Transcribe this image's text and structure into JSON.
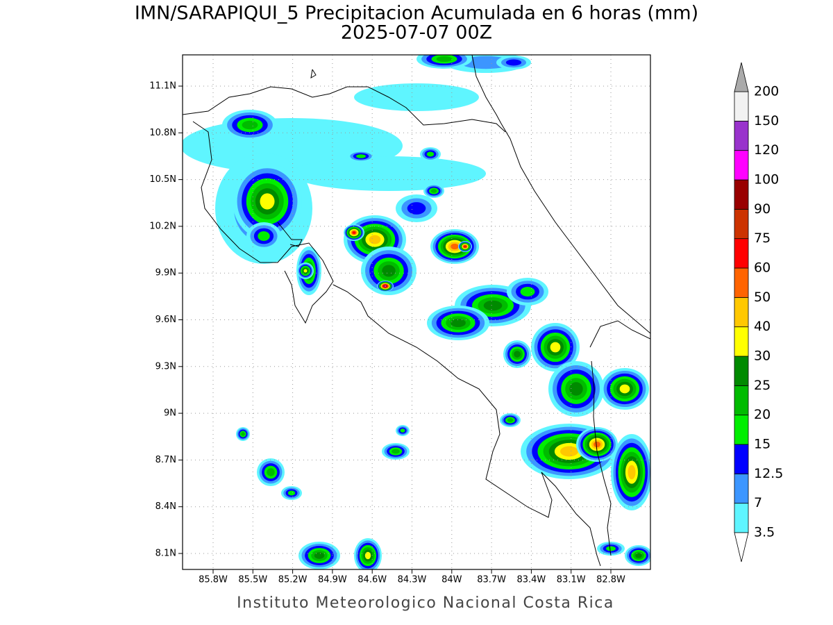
{
  "title": "IMN/SARAPIQUI_5 Precipitacion Acumulada en 6 horas (mm)",
  "subtitle": "2025-07-07 00Z",
  "map": {
    "lon_labels": [
      "85.8W",
      "85.5W",
      "85.2W",
      "84.9W",
      "84.6W",
      "84.3W",
      "84W",
      "83.7W",
      "83.4W",
      "83.1W",
      "82.8W"
    ],
    "lat_labels": [
      "11.1N",
      "10.8N",
      "10.5N",
      "10.2N",
      "9.9N",
      "9.6N",
      "9.3N",
      "9N",
      "8.7N",
      "8.4N",
      "8.1N"
    ]
  },
  "colorbar": {
    "levels": [
      3.5,
      7,
      12.5,
      15,
      20,
      25,
      30,
      40,
      50,
      60,
      75,
      90,
      100,
      120,
      150,
      200
    ],
    "colors": [
      "#5ff5ff",
      "#3c96ff",
      "#0000ff",
      "#00ee00",
      "#00bb00",
      "#008a00",
      "#ffff00",
      "#ffc800",
      "#ff6400",
      "#ff0000",
      "#cc3300",
      "#990000",
      "#ff00ff",
      "#9933cc",
      "#f2f2f2"
    ],
    "over_color": "#aaaaaa",
    "under_color": "#ffffff"
  },
  "footer": "Instituto Meteorologico Nacional Costa Rica"
}
